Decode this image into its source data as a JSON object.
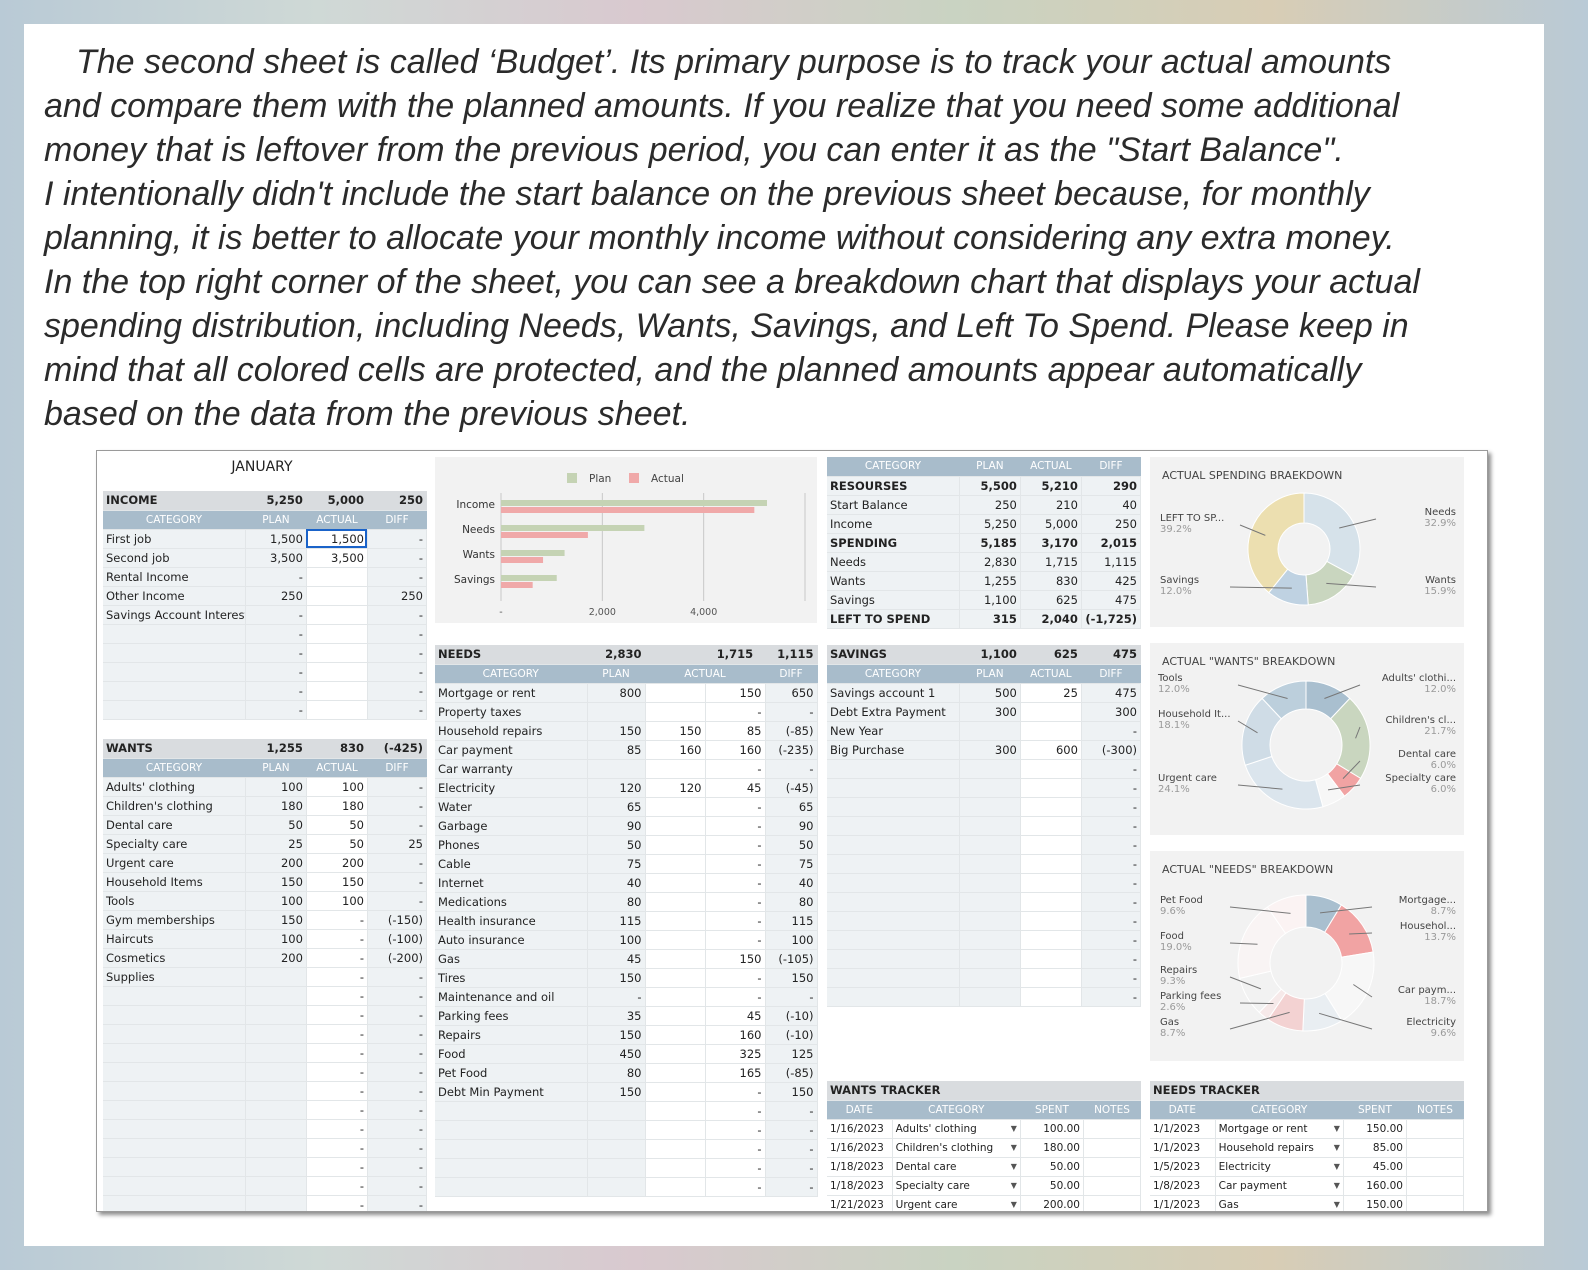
{
  "intro": {
    "lines": [
      "The second sheet is called ‘Budget’. Its primary purpose is to track your actual amounts",
      "and compare them with the planned amounts. If you realize that you need some additional",
      "money that is leftover from the previous period, you can enter it as the \"Start Balance\".",
      "I intentionally didn't include the start balance on the previous sheet because, for monthly",
      "planning, it is better to allocate your monthly income without considering any extra money.",
      "In the top right corner of the sheet, you can see a breakdown chart that displays your actual",
      "spending distribution, including Needs, Wants, Savings, and Left To Spend. Please keep in",
      "mind that all colored cells are protected, and the planned amounts appear automatically",
      "based on the data from the previous sheet."
    ]
  },
  "month": "JANUARY",
  "income": {
    "title": "INCOME",
    "plan": "5,250",
    "actual": "5,000",
    "diff": "250",
    "headers": [
      "CATEGORY",
      "PLAN",
      "ACTUAL",
      "DIFF"
    ],
    "rows": [
      [
        "First job",
        "1,500",
        "1,500",
        "-"
      ],
      [
        "Second job",
        "3,500",
        "3,500",
        "-"
      ],
      [
        "Rental Income",
        "-",
        "",
        "-"
      ],
      [
        "Other Income",
        "250",
        "",
        "250"
      ],
      [
        "Savings Account Interest",
        "-",
        "",
        "-"
      ],
      [
        "",
        "-",
        "",
        "-"
      ],
      [
        "",
        "-",
        "",
        "-"
      ],
      [
        "",
        "-",
        "",
        "-"
      ],
      [
        "",
        "-",
        "",
        "-"
      ],
      [
        "",
        "-",
        "",
        "-"
      ]
    ]
  },
  "wants": {
    "title": "WANTS",
    "plan": "1,255",
    "actual": "830",
    "diff": "(-425)",
    "headers": [
      "CATEGORY",
      "PLAN",
      "ACTUAL",
      "DIFF"
    ],
    "rows": [
      [
        "Adults' clothing",
        "100",
        "100",
        "-"
      ],
      [
        "Children's clothing",
        "180",
        "180",
        "-"
      ],
      [
        "Dental care",
        "50",
        "50",
        "-"
      ],
      [
        "Specialty care",
        "25",
        "50",
        "25"
      ],
      [
        "Urgent care",
        "200",
        "200",
        "-"
      ],
      [
        "Household Items",
        "150",
        "150",
        "-"
      ],
      [
        "Tools",
        "100",
        "100",
        "-"
      ],
      [
        "Gym memberships",
        "150",
        "-",
        "(-150)"
      ],
      [
        "Haircuts",
        "100",
        "-",
        "(-100)"
      ],
      [
        "Cosmetics",
        "200",
        "-",
        "(-200)"
      ],
      [
        "Supplies",
        "",
        "-",
        "-"
      ],
      [
        "",
        "",
        "-",
        "-"
      ],
      [
        "",
        "",
        "-",
        "-"
      ],
      [
        "",
        "",
        "-",
        "-"
      ],
      [
        "",
        "",
        "-",
        "-"
      ],
      [
        "",
        "",
        "-",
        "-"
      ],
      [
        "",
        "",
        "-",
        "-"
      ],
      [
        "",
        "",
        "-",
        "-"
      ],
      [
        "",
        "",
        "-",
        "-"
      ],
      [
        "",
        "",
        "-",
        "-"
      ],
      [
        "",
        "",
        "-",
        "-"
      ],
      [
        "",
        "",
        "-",
        "-"
      ],
      [
        "",
        "",
        "-",
        "-"
      ]
    ]
  },
  "needs": {
    "title": "NEEDS",
    "plan": "2,830",
    "actual": "1,715",
    "diff": "1,115",
    "headers": [
      "CATEGORY",
      "PLAN",
      "ACTUAL",
      "DIFF"
    ],
    "rows": [
      [
        "Mortgage or rent",
        "800",
        "",
        "150",
        "650"
      ],
      [
        "Property taxes",
        "",
        "",
        "-",
        "-"
      ],
      [
        "Household repairs",
        "150",
        "150",
        "85",
        "(-85)"
      ],
      [
        "Car payment",
        "85",
        "160",
        "160",
        "(-235)"
      ],
      [
        "Car warranty",
        "",
        "",
        "-",
        "-"
      ],
      [
        "Electricity",
        "120",
        "120",
        "45",
        "(-45)"
      ],
      [
        "Water",
        "65",
        "",
        "-",
        "65"
      ],
      [
        "Garbage",
        "90",
        "",
        "-",
        "90"
      ],
      [
        "Phones",
        "50",
        "",
        "-",
        "50"
      ],
      [
        "Cable",
        "75",
        "",
        "-",
        "75"
      ],
      [
        "Internet",
        "40",
        "",
        "-",
        "40"
      ],
      [
        "Medications",
        "80",
        "",
        "-",
        "80"
      ],
      [
        "Health insurance",
        "115",
        "",
        "-",
        "115"
      ],
      [
        "Auto insurance",
        "100",
        "",
        "-",
        "100"
      ],
      [
        "Gas",
        "45",
        "",
        "150",
        "(-105)"
      ],
      [
        "Tires",
        "150",
        "",
        "-",
        "150"
      ],
      [
        "Maintenance and oil",
        "-",
        "",
        "-",
        "-"
      ],
      [
        "Parking fees",
        "35",
        "",
        "45",
        "(-10)"
      ],
      [
        "Repairs",
        "150",
        "",
        "160",
        "(-10)"
      ],
      [
        "Food",
        "450",
        "",
        "325",
        "125"
      ],
      [
        "Pet Food",
        "80",
        "",
        "165",
        "(-85)"
      ],
      [
        "Debt Min Payment",
        "150",
        "",
        "-",
        "150"
      ],
      [
        "",
        "",
        "",
        "-",
        "-"
      ],
      [
        "",
        "",
        "",
        "-",
        "-"
      ],
      [
        "",
        "",
        "",
        "-",
        "-"
      ],
      [
        "",
        "",
        "",
        "-",
        "-"
      ],
      [
        "",
        "",
        "",
        "-",
        "-"
      ]
    ]
  },
  "resources": {
    "headers": [
      "CATEGORY",
      "PLAN",
      "ACTUAL",
      "DIFF"
    ],
    "rows": [
      [
        "RESOURSES",
        "5,500",
        "5,210",
        "290",
        "bold"
      ],
      [
        "Start Balance",
        "250",
        "210",
        "40",
        ""
      ],
      [
        "Income",
        "5,250",
        "5,000",
        "250",
        ""
      ],
      [
        "SPENDING",
        "5,185",
        "3,170",
        "2,015",
        "bold"
      ],
      [
        "Needs",
        "2,830",
        "1,715",
        "1,115",
        ""
      ],
      [
        "Wants",
        "1,255",
        "830",
        "425",
        ""
      ],
      [
        "Savings",
        "1,100",
        "625",
        "475",
        ""
      ],
      [
        "LEFT TO SPEND",
        "315",
        "2,040",
        "(-1,725)",
        "bold"
      ]
    ]
  },
  "savings": {
    "title": "SAVINGS",
    "plan": "1,100",
    "actual": "625",
    "diff": "475",
    "headers": [
      "CATEGORY",
      "PLAN",
      "ACTUAL",
      "DIFF"
    ],
    "rows": [
      [
        "Savings account 1",
        "500",
        "25",
        "475"
      ],
      [
        "Debt Extra Payment",
        "300",
        "",
        "300"
      ],
      [
        "New Year",
        "",
        "",
        "-"
      ],
      [
        "Big Purchase",
        "300",
        "600",
        "(-300)"
      ],
      [
        "",
        "",
        "",
        "-"
      ],
      [
        "",
        "",
        "",
        "-"
      ],
      [
        "",
        "",
        "",
        "-"
      ],
      [
        "",
        "",
        "",
        "-"
      ],
      [
        "",
        "",
        "",
        "-"
      ],
      [
        "",
        "",
        "",
        "-"
      ],
      [
        "",
        "",
        "",
        "-"
      ],
      [
        "",
        "",
        "",
        "-"
      ],
      [
        "",
        "",
        "",
        "-"
      ],
      [
        "",
        "",
        "",
        "-"
      ],
      [
        "",
        "",
        "",
        "-"
      ],
      [
        "",
        "",
        "",
        "-"
      ],
      [
        "",
        "",
        "",
        "-"
      ]
    ]
  },
  "wants_tracker": {
    "title": "WANTS TRACKER",
    "headers": [
      "DATE",
      "CATEGORY",
      "SPENT",
      "NOTES"
    ],
    "rows": [
      [
        "1/16/2023",
        "Adults' clothing",
        "100.00"
      ],
      [
        "1/16/2023",
        "Children's clothing",
        "180.00"
      ],
      [
        "1/18/2023",
        "Dental care",
        "50.00"
      ],
      [
        "1/18/2023",
        "Specialty care",
        "50.00"
      ],
      [
        "1/21/2023",
        "Urgent care",
        "200.00"
      ]
    ]
  },
  "needs_tracker": {
    "title": "NEEDS TRACKER",
    "headers": [
      "DATE",
      "CATEGORY",
      "SPENT",
      "NOTES"
    ],
    "rows": [
      [
        "1/1/2023",
        "Mortgage or rent",
        "150.00"
      ],
      [
        "1/1/2023",
        "Household repairs",
        "85.00"
      ],
      [
        "1/5/2023",
        "Electricity",
        "45.00"
      ],
      [
        "1/8/2023",
        "Car payment",
        "160.00"
      ],
      [
        "1/1/2023",
        "Gas",
        "150.00"
      ]
    ]
  },
  "chart_data": [
    {
      "type": "bar",
      "orientation": "horizontal",
      "categories": [
        "Income",
        "Needs",
        "Wants",
        "Savings"
      ],
      "series": [
        {
          "name": "Plan",
          "values": [
            5250,
            2830,
            1255,
            1100
          ],
          "color": "#c5d3b4"
        },
        {
          "name": "Actual",
          "values": [
            5000,
            1715,
            830,
            625
          ],
          "color": "#f0a9a9"
        }
      ],
      "tick_labels": [
        "-",
        "2,000",
        "4,000"
      ],
      "xlim": [
        0,
        6000
      ],
      "legend": "top"
    },
    {
      "type": "pie",
      "title": "ACTUAL SPENDING BRAEKDOWN",
      "donut": true,
      "slices": [
        {
          "label": "Needs",
          "pct": "32.9%",
          "value": 32.9,
          "color": "#d6e2ea"
        },
        {
          "label": "Wants",
          "pct": "15.9%",
          "value": 15.9,
          "color": "#c9d6bf"
        },
        {
          "label": "Savings",
          "pct": "12.0%",
          "value": 12.0,
          "color": "#bfd2e2"
        },
        {
          "label": "LEFT TO SP...",
          "pct": "39.2%",
          "value": 39.2,
          "color": "#ecdfb0"
        }
      ]
    },
    {
      "type": "pie",
      "title": "ACTUAL \"WANTS\" BREAKDOWN",
      "donut": true,
      "slices": [
        {
          "label": "Adults' clothi...",
          "pct": "12.0%",
          "value": 12.0,
          "color": "#a9bfcf"
        },
        {
          "label": "Children's cl...",
          "pct": "21.7%",
          "value": 21.7,
          "color": "#c9d6bf"
        },
        {
          "label": "Dental care",
          "pct": "6.0%",
          "value": 6.0,
          "color": "#f1a3a3"
        },
        {
          "label": "Specialty care",
          "pct": "6.0%",
          "value": 6.0,
          "color": "#f7f7f7"
        },
        {
          "label": "Urgent care",
          "pct": "24.1%",
          "value": 24.1,
          "color": "#dbe5ed"
        },
        {
          "label": "Household It...",
          "pct": "18.1%",
          "value": 18.1,
          "color": "#cfdce6"
        },
        {
          "label": "Tools",
          "pct": "12.0%",
          "value": 12.0,
          "color": "#bccfdc"
        }
      ]
    },
    {
      "type": "pie",
      "title": "ACTUAL \"NEEDS\" BREAKDOWN",
      "donut": true,
      "slices": [
        {
          "label": "Mortgage...",
          "pct": "8.7%",
          "value": 8.7,
          "color": "#a9bfcf"
        },
        {
          "label": "Househol...",
          "pct": "13.7%",
          "value": 13.7,
          "color": "#f1a3a3"
        },
        {
          "label": "Car paym...",
          "pct": "18.7%",
          "value": 18.7,
          "color": "#f7f7f7"
        },
        {
          "label": "Electricity",
          "pct": "9.6%",
          "value": 9.6,
          "color": "#e9eef2"
        },
        {
          "label": "Gas",
          "pct": "8.7%",
          "value": 8.7,
          "color": "#f3d2d2"
        },
        {
          "label": "Parking fees",
          "pct": "2.6%",
          "value": 2.6,
          "color": "#f6e9e9"
        },
        {
          "label": "Repairs",
          "pct": "9.3%",
          "value": 9.3,
          "color": "#f2f2f2"
        },
        {
          "label": "Food",
          "pct": "19.0%",
          "value": 19.0,
          "color": "#f9f4f4"
        },
        {
          "label": "Pet Food",
          "pct": "9.6%",
          "value": 9.6,
          "color": "#fbf3f3"
        }
      ]
    }
  ]
}
